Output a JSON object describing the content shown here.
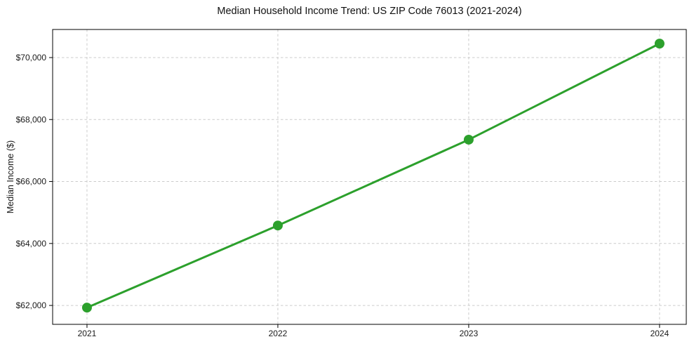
{
  "chart_data": {
    "type": "line",
    "title": "Median Household Income Trend: US ZIP Code 76013 (2021-2024)",
    "xlabel": "",
    "ylabel": "Median Income ($)",
    "x": [
      2021,
      2022,
      2023,
      2024
    ],
    "x_tick_labels": [
      "2021",
      "2022",
      "2023",
      "2024"
    ],
    "series": [
      {
        "name": "Median Household Income",
        "values": [
          61930,
          64580,
          67350,
          70450
        ]
      }
    ],
    "y_ticks": [
      62000,
      64000,
      66000,
      68000,
      70000
    ],
    "y_tick_labels": [
      "$62,000",
      "$64,000",
      "$66,000",
      "$68,000",
      "$70,000"
    ],
    "xlim": [
      2020.82,
      2024.14
    ],
    "ylim": [
      61390,
      70906
    ],
    "grid": true,
    "legend_position": "none",
    "colors": {
      "line": "#2ca02c",
      "marker": "#2ca02c",
      "grid": "#cccccc",
      "spine": "#000000",
      "text": "#1a1a1a",
      "background": "#ffffff"
    }
  }
}
